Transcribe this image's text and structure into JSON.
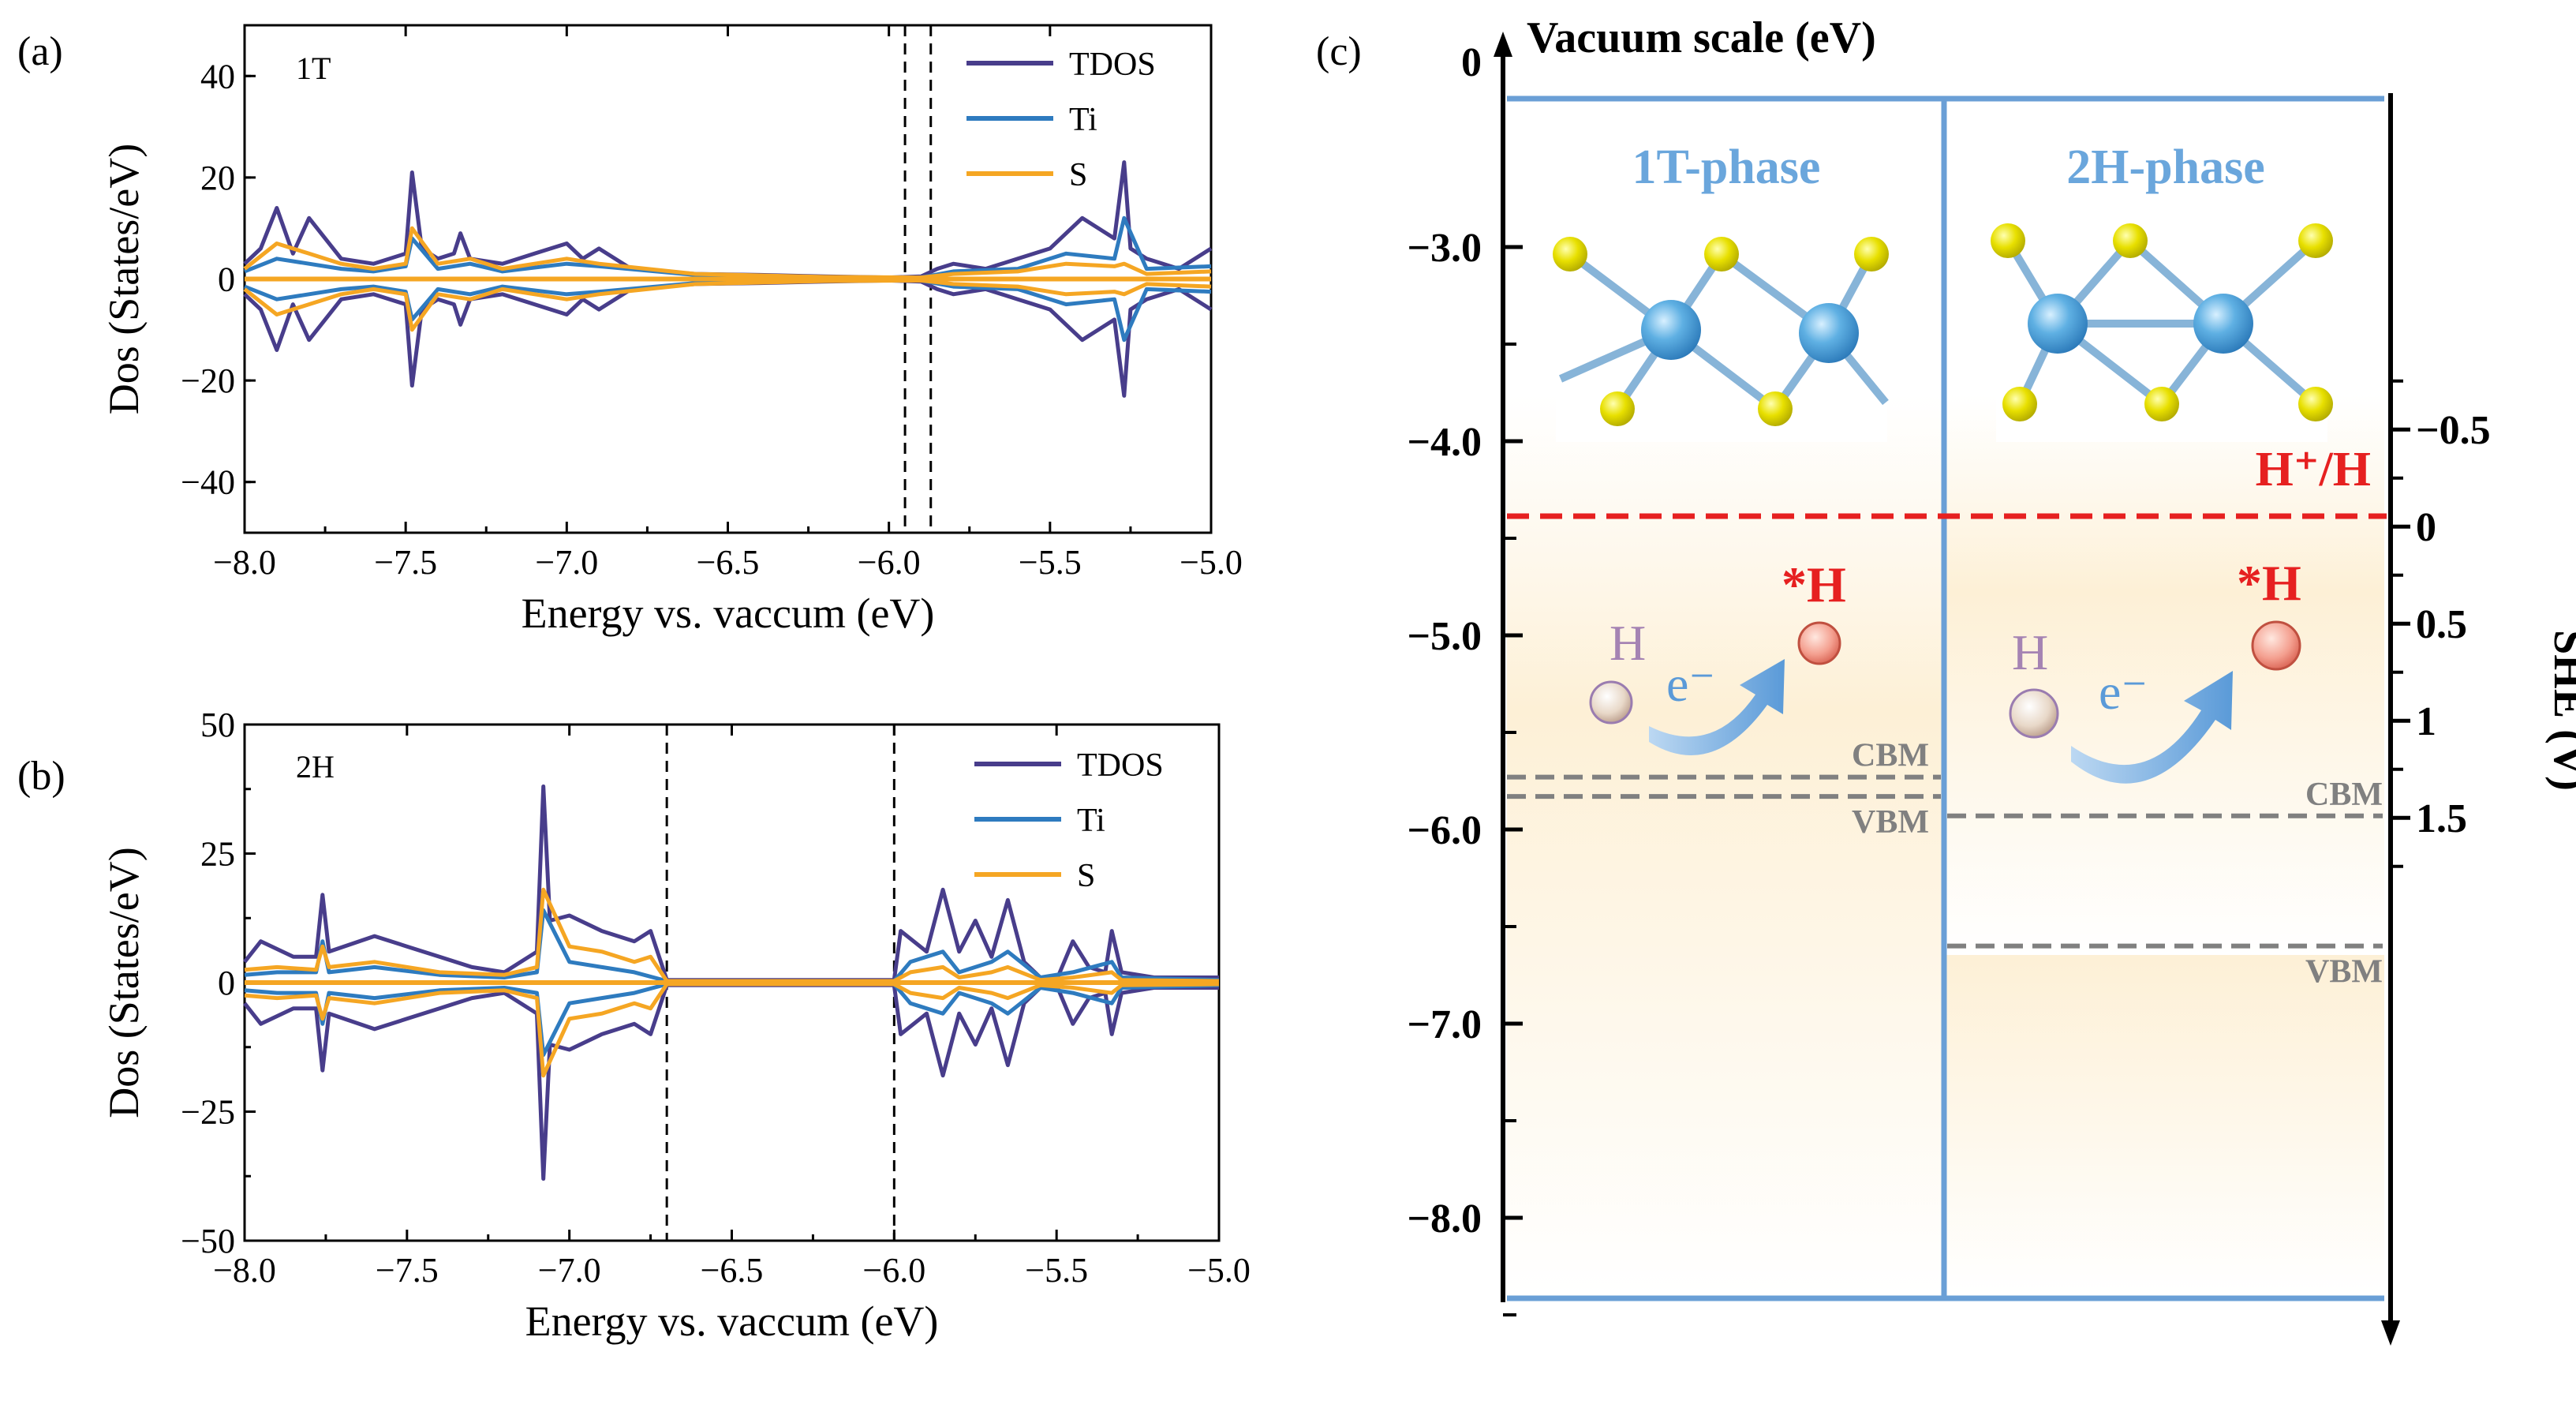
{
  "chart_data": [
    {
      "panel": "(a)",
      "type": "line",
      "tag": "1T",
      "xlabel": "Energy vs. vaccum (eV)",
      "ylabel": "Dos (States/eV)",
      "xlim": [
        -8.0,
        -5.0
      ],
      "ylim": [
        -50,
        50
      ],
      "xticks": [
        -8.0,
        -7.5,
        -7.0,
        -6.5,
        -6.0,
        -5.5,
        -5.0
      ],
      "xtick_labels": [
        "−8.0",
        "−7.5",
        "−7.0",
        "−6.5",
        "−6.0",
        "−5.5",
        "−5.0"
      ],
      "yticks": [
        -40,
        -20,
        0,
        20,
        40
      ],
      "ytick_labels": [
        "−40",
        "−20",
        "0",
        "20",
        "40"
      ],
      "vlines": [
        -5.95,
        -5.87
      ],
      "legend": [
        "TDOS",
        "Ti",
        "S"
      ],
      "series": [
        {
          "name": "TDOS",
          "color": "#483d8b",
          "x": [
            -8.0,
            -7.95,
            -7.9,
            -7.85,
            -7.8,
            -7.75,
            -7.7,
            -7.6,
            -7.5,
            -7.48,
            -7.45,
            -7.4,
            -7.35,
            -7.33,
            -7.3,
            -7.2,
            -7.1,
            -7.0,
            -6.95,
            -6.9,
            -6.8,
            -6.6,
            -6.4,
            -6.2,
            -6.0,
            -5.9,
            -5.85,
            -5.8,
            -5.7,
            -5.6,
            -5.5,
            -5.45,
            -5.4,
            -5.3,
            -5.27,
            -5.25,
            -5.2,
            -5.1,
            -5.0
          ],
          "values": [
            3,
            6,
            14,
            5,
            12,
            8,
            4,
            3,
            5,
            21,
            6,
            4,
            5,
            9,
            4,
            3,
            5,
            7,
            4,
            6,
            2,
            1,
            0.8,
            0.5,
            0.3,
            0.5,
            2,
            3,
            2,
            4,
            6,
            9,
            12,
            8,
            23,
            6,
            4,
            2,
            6
          ]
        },
        {
          "name": "Ti",
          "color": "#2e7bbf",
          "x": [
            -8.0,
            -7.9,
            -7.8,
            -7.7,
            -7.6,
            -7.5,
            -7.48,
            -7.4,
            -7.3,
            -7.2,
            -7.0,
            -6.9,
            -6.6,
            -6.2,
            -5.9,
            -5.8,
            -5.6,
            -5.45,
            -5.3,
            -5.27,
            -5.2,
            -5.0
          ],
          "values": [
            1.5,
            4,
            3,
            2,
            1.5,
            2.5,
            8,
            2,
            3,
            1.5,
            3,
            2.5,
            0.8,
            0.3,
            0.3,
            1.5,
            2,
            5,
            4,
            12,
            2,
            2.5
          ]
        },
        {
          "name": "S",
          "color": "#f5a623",
          "x": [
            -8.0,
            -7.9,
            -7.8,
            -7.7,
            -7.6,
            -7.5,
            -7.48,
            -7.4,
            -7.3,
            -7.2,
            -7.0,
            -6.9,
            -6.6,
            -6.2,
            -5.9,
            -5.8,
            -5.6,
            -5.45,
            -5.3,
            -5.27,
            -5.2,
            -5.0
          ],
          "values": [
            2,
            7,
            5,
            3,
            2,
            3,
            10,
            3,
            4,
            2,
            4,
            3,
            1,
            0.4,
            0.3,
            1,
            1.5,
            3,
            2.5,
            3,
            1,
            1.5
          ]
        }
      ]
    },
    {
      "panel": "(b)",
      "type": "line",
      "tag": "2H",
      "xlabel": "Energy vs. vaccum (eV)",
      "ylabel": "Dos (States/eV)",
      "xlim": [
        -8.0,
        -5.0
      ],
      "ylim": [
        -50,
        50
      ],
      "xticks": [
        -8.0,
        -7.5,
        -7.0,
        -6.5,
        -6.0,
        -5.5,
        -5.0
      ],
      "xtick_labels": [
        "−8.0",
        "−7.5",
        "−7.0",
        "−6.5",
        "−6.0",
        "−5.5",
        "−5.0"
      ],
      "yticks": [
        -50,
        -25,
        0,
        25,
        50
      ],
      "ytick_labels": [
        "−50",
        "−25",
        "0",
        "25",
        "50"
      ],
      "vlines": [
        -6.7,
        -6.0
      ],
      "legend": [
        "TDOS",
        "Ti",
        "S"
      ],
      "series": [
        {
          "name": "TDOS",
          "color": "#483d8b",
          "x": [
            -8.0,
            -7.95,
            -7.85,
            -7.78,
            -7.76,
            -7.74,
            -7.6,
            -7.5,
            -7.4,
            -7.3,
            -7.2,
            -7.1,
            -7.08,
            -7.06,
            -7.0,
            -6.9,
            -6.8,
            -6.75,
            -6.7,
            -6.0,
            -5.98,
            -5.9,
            -5.85,
            -5.8,
            -5.75,
            -5.7,
            -5.65,
            -5.6,
            -5.55,
            -5.5,
            -5.45,
            -5.4,
            -5.35,
            -5.33,
            -5.3,
            -5.2,
            -5.0
          ],
          "values": [
            4,
            8,
            5,
            5,
            17,
            6,
            9,
            7,
            5,
            3,
            2,
            6,
            38,
            12,
            13,
            10,
            8,
            10,
            0.5,
            0.5,
            10,
            6,
            18,
            6,
            12,
            5,
            16,
            4,
            1,
            0.5,
            8,
            3,
            2,
            10,
            2,
            1,
            1
          ]
        },
        {
          "name": "Ti",
          "color": "#2e7bbf",
          "x": [
            -8.0,
            -7.9,
            -7.78,
            -7.76,
            -7.74,
            -7.6,
            -7.4,
            -7.2,
            -7.1,
            -7.08,
            -7.0,
            -6.9,
            -6.8,
            -6.7,
            -6.0,
            -5.95,
            -5.85,
            -5.8,
            -5.7,
            -5.65,
            -5.55,
            -5.45,
            -5.33,
            -5.3,
            -5.0
          ],
          "values": [
            1.5,
            2,
            2,
            8,
            2,
            3,
            1.5,
            1,
            2,
            14,
            4,
            3,
            2,
            0.3,
            0.3,
            4,
            6,
            2,
            4,
            6,
            1,
            2,
            4,
            1,
            0.5
          ]
        },
        {
          "name": "S",
          "color": "#f5a623",
          "x": [
            -8.0,
            -7.9,
            -7.78,
            -7.76,
            -7.74,
            -7.6,
            -7.4,
            -7.2,
            -7.1,
            -7.08,
            -7.0,
            -6.9,
            -6.8,
            -6.75,
            -6.7,
            -6.0,
            -5.95,
            -5.85,
            -5.8,
            -5.7,
            -5.65,
            -5.55,
            -5.45,
            -5.33,
            -5.3,
            -5.0
          ],
          "values": [
            2.5,
            3,
            2.5,
            7,
            3,
            4,
            2,
            1.5,
            3,
            18,
            7,
            6,
            4,
            5,
            0.3,
            0.3,
            2,
            3,
            1,
            2,
            3,
            0.5,
            1,
            2,
            0.5,
            0.3
          ]
        }
      ]
    },
    {
      "panel": "(c)",
      "type": "diagram",
      "title": "Vacuum scale (eV)",
      "ylabel_right": "SHE (V)",
      "left_axis": {
        "ticks": [
          0,
          -3.0,
          -4.0,
          -5.0,
          -6.0,
          -7.0,
          -8.0
        ],
        "labels": [
          "0",
          "−3.0",
          "−4.0",
          "−5.0",
          "−6.0",
          "−7.0",
          "−8.0"
        ]
      },
      "right_axis": {
        "ticks": [
          -0.5,
          0,
          0.5,
          1,
          1.5
        ],
        "labels": [
          "−0.5",
          "0",
          "0.5",
          "1",
          "1.5"
        ]
      },
      "she_zero_vacuum": -4.44,
      "reference_label": "H⁺/H",
      "phases": [
        {
          "name": "1T-phase",
          "cbm": -5.73,
          "vbm": -5.83,
          "cbm_label": "CBM",
          "vbm_label": "VBM",
          "h_label": "H",
          "e_label": "e⁻",
          "hstar_label": "*H"
        },
        {
          "name": "2H-phase",
          "cbm": -5.93,
          "vbm": -6.6,
          "cbm_label": "CBM",
          "vbm_label": "VBM",
          "h_label": "H",
          "e_label": "e⁻",
          "hstar_label": "*H"
        }
      ]
    }
  ],
  "colors": {
    "tdos": "#483d8b",
    "ti": "#2e7bbf",
    "s": "#f5a623",
    "frame": "#6a9fd6",
    "ref": "#e62020",
    "phase": "#6aa6dc",
    "band": "#808080",
    "h": "#a583b3"
  }
}
